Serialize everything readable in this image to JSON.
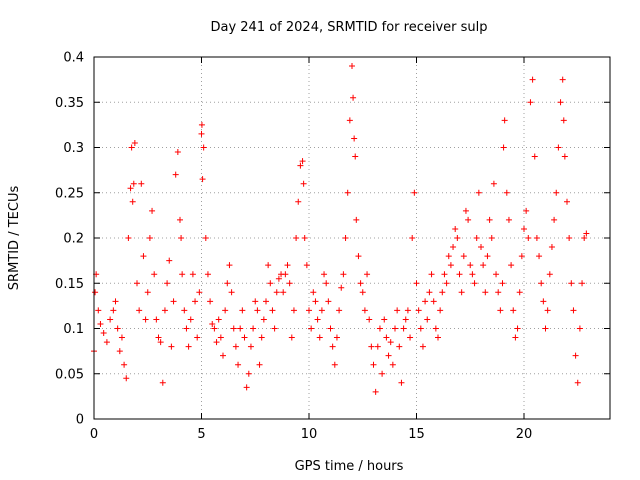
{
  "chart_data": {
    "type": "scatter",
    "title": "Day 241 of 2024, SRMTID for receiver sulp",
    "xlabel": "GPS time / hours",
    "ylabel": "SRMTID / TECUs",
    "xlim": [
      0,
      24
    ],
    "ylim": [
      0,
      0.4
    ],
    "grid": true,
    "marker": "+",
    "color": "#ff0000",
    "xticks": [
      0,
      5,
      10,
      15,
      20
    ],
    "xtick_labels": [
      "0",
      "5",
      "10",
      "15",
      "20"
    ],
    "yticks": [
      0,
      0.05,
      0.1,
      0.15,
      0.2,
      0.25,
      0.3,
      0.35,
      0.4
    ],
    "ytick_labels": [
      "0",
      "0.05",
      "0.1",
      "0.15",
      "0.2",
      "0.25",
      "0.3",
      "0.35",
      "0.4"
    ],
    "x_data_range": [
      0,
      22.9
    ],
    "series": [
      {
        "name": "SRMTID",
        "x": [
          0.0,
          0.05,
          0.1,
          0.2,
          0.3,
          0.45,
          0.6,
          0.75,
          0.9,
          1.0,
          1.1,
          1.2,
          1.3,
          1.4,
          1.5,
          1.6,
          1.7,
          1.75,
          1.8,
          1.85,
          1.9,
          2.0,
          2.1,
          2.2,
          2.3,
          2.4,
          2.5,
          2.6,
          2.7,
          2.8,
          2.9,
          3.0,
          3.1,
          3.2,
          3.3,
          3.4,
          3.5,
          3.6,
          3.7,
          3.8,
          3.9,
          4.0,
          4.05,
          4.1,
          4.2,
          4.3,
          4.4,
          4.5,
          4.6,
          4.7,
          4.8,
          4.9,
          5.0,
          5.02,
          5.05,
          5.1,
          5.2,
          5.3,
          5.4,
          5.5,
          5.6,
          5.7,
          5.8,
          5.9,
          6.0,
          6.1,
          6.2,
          6.3,
          6.4,
          6.5,
          6.6,
          6.7,
          6.8,
          6.9,
          7.0,
          7.1,
          7.2,
          7.3,
          7.4,
          7.5,
          7.6,
          7.7,
          7.8,
          7.9,
          8.0,
          8.1,
          8.2,
          8.3,
          8.4,
          8.5,
          8.6,
          8.7,
          8.8,
          8.9,
          9.0,
          9.1,
          9.2,
          9.3,
          9.4,
          9.5,
          9.6,
          9.7,
          9.75,
          9.8,
          9.9,
          10.0,
          10.1,
          10.2,
          10.3,
          10.4,
          10.5,
          10.6,
          10.7,
          10.8,
          10.9,
          11.0,
          11.1,
          11.2,
          11.3,
          11.4,
          11.5,
          11.6,
          11.7,
          11.8,
          11.9,
          12.0,
          12.05,
          12.1,
          12.15,
          12.2,
          12.3,
          12.4,
          12.5,
          12.6,
          12.7,
          12.8,
          12.9,
          13.0,
          13.1,
          13.2,
          13.3,
          13.4,
          13.5,
          13.6,
          13.7,
          13.8,
          13.9,
          14.0,
          14.1,
          14.2,
          14.3,
          14.4,
          14.5,
          14.6,
          14.7,
          14.8,
          14.9,
          15.0,
          15.1,
          15.2,
          15.3,
          15.4,
          15.5,
          15.6,
          15.7,
          15.8,
          15.9,
          16.0,
          16.1,
          16.2,
          16.3,
          16.4,
          16.5,
          16.6,
          16.7,
          16.8,
          16.9,
          17.0,
          17.1,
          17.2,
          17.3,
          17.4,
          17.5,
          17.6,
          17.7,
          17.8,
          17.9,
          18.0,
          18.1,
          18.2,
          18.3,
          18.4,
          18.5,
          18.6,
          18.7,
          18.8,
          18.9,
          19.0,
          19.05,
          19.1,
          19.2,
          19.3,
          19.4,
          19.5,
          19.6,
          19.7,
          19.8,
          19.9,
          20.0,
          20.1,
          20.2,
          20.3,
          20.4,
          20.5,
          20.6,
          20.7,
          20.8,
          20.9,
          21.0,
          21.1,
          21.2,
          21.3,
          21.4,
          21.5,
          21.6,
          21.7,
          21.8,
          21.85,
          21.9,
          22.0,
          22.1,
          22.2,
          22.3,
          22.4,
          22.5,
          22.6,
          22.7,
          22.8,
          22.9
        ],
        "y": [
          0.075,
          0.14,
          0.16,
          0.12,
          0.105,
          0.095,
          0.085,
          0.11,
          0.12,
          0.13,
          0.1,
          0.075,
          0.09,
          0.06,
          0.045,
          0.2,
          0.255,
          0.3,
          0.24,
          0.26,
          0.305,
          0.15,
          0.12,
          0.26,
          0.18,
          0.11,
          0.14,
          0.2,
          0.23,
          0.16,
          0.11,
          0.09,
          0.085,
          0.04,
          0.12,
          0.15,
          0.175,
          0.08,
          0.13,
          0.27,
          0.295,
          0.22,
          0.2,
          0.16,
          0.12,
          0.1,
          0.08,
          0.11,
          0.16,
          0.13,
          0.09,
          0.14,
          0.315,
          0.325,
          0.265,
          0.3,
          0.2,
          0.16,
          0.13,
          0.105,
          0.1,
          0.085,
          0.11,
          0.09,
          0.07,
          0.12,
          0.15,
          0.17,
          0.14,
          0.1,
          0.08,
          0.06,
          0.1,
          0.12,
          0.09,
          0.035,
          0.05,
          0.08,
          0.1,
          0.13,
          0.12,
          0.06,
          0.09,
          0.11,
          0.13,
          0.17,
          0.15,
          0.12,
          0.1,
          0.14,
          0.155,
          0.16,
          0.14,
          0.16,
          0.17,
          0.15,
          0.09,
          0.12,
          0.2,
          0.24,
          0.28,
          0.285,
          0.26,
          0.2,
          0.17,
          0.12,
          0.1,
          0.14,
          0.13,
          0.11,
          0.09,
          0.12,
          0.16,
          0.15,
          0.13,
          0.1,
          0.08,
          0.06,
          0.09,
          0.12,
          0.145,
          0.16,
          0.2,
          0.25,
          0.33,
          0.39,
          0.355,
          0.31,
          0.29,
          0.22,
          0.18,
          0.15,
          0.14,
          0.12,
          0.16,
          0.11,
          0.08,
          0.06,
          0.03,
          0.08,
          0.1,
          0.05,
          0.11,
          0.09,
          0.07,
          0.085,
          0.06,
          0.1,
          0.12,
          0.08,
          0.04,
          0.1,
          0.11,
          0.12,
          0.09,
          0.2,
          0.25,
          0.15,
          0.12,
          0.1,
          0.08,
          0.13,
          0.11,
          0.14,
          0.16,
          0.13,
          0.1,
          0.09,
          0.12,
          0.14,
          0.16,
          0.15,
          0.18,
          0.17,
          0.19,
          0.21,
          0.2,
          0.16,
          0.14,
          0.18,
          0.23,
          0.22,
          0.17,
          0.16,
          0.15,
          0.2,
          0.25,
          0.19,
          0.17,
          0.14,
          0.18,
          0.22,
          0.2,
          0.26,
          0.16,
          0.14,
          0.12,
          0.15,
          0.3,
          0.33,
          0.25,
          0.22,
          0.17,
          0.12,
          0.09,
          0.1,
          0.14,
          0.18,
          0.21,
          0.23,
          0.2,
          0.35,
          0.375,
          0.29,
          0.2,
          0.18,
          0.15,
          0.13,
          0.1,
          0.12,
          0.16,
          0.19,
          0.22,
          0.25,
          0.3,
          0.35,
          0.375,
          0.33,
          0.29,
          0.24,
          0.2,
          0.15,
          0.12,
          0.07,
          0.04,
          0.1,
          0.15,
          0.2,
          0.205
        ]
      }
    ]
  }
}
